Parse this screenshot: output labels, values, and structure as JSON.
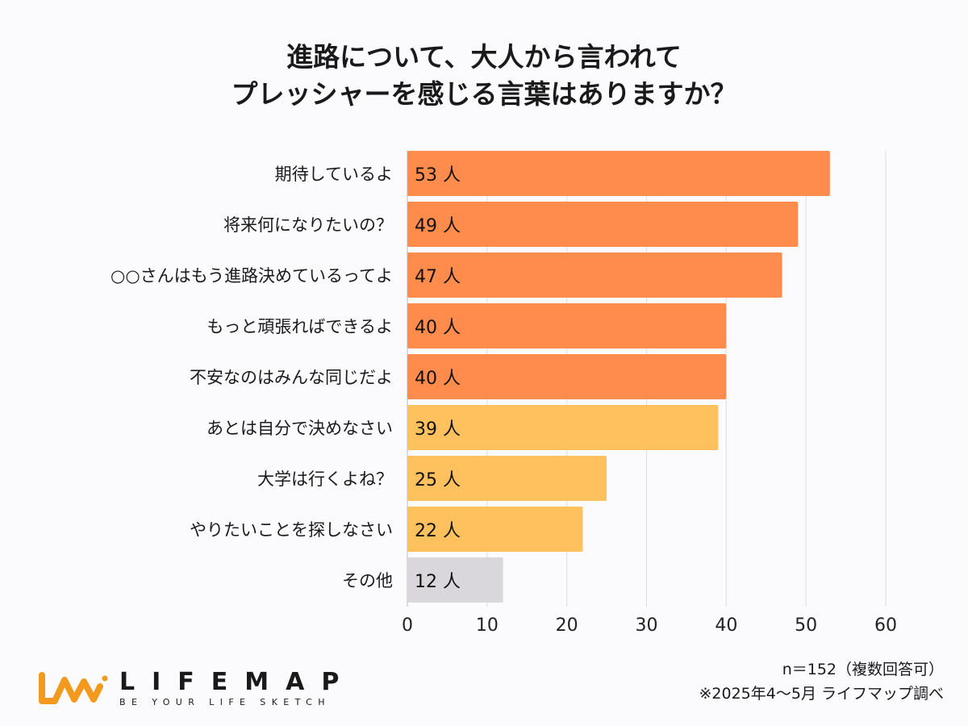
{
  "chart_data": {
    "type": "bar",
    "orientation": "horizontal",
    "title": "進路について、大人から言われて\nプレッシャーを感じる言葉はありますか？",
    "categories": [
      "期待しているよ",
      "将来何になりたいの？",
      "○○さんはもう進路決めているってよ",
      "もっと頑張ればできるよ",
      "不安なのはみんな同じだよ",
      "あとは自分で決めなさい",
      "大学は行くよね？",
      "やりたいことを探しなさい",
      "その他"
    ],
    "values": [
      53,
      49,
      47,
      40,
      40,
      39,
      25,
      22,
      12
    ],
    "value_unit": "人",
    "bar_colors": [
      "#ff8c4c",
      "#ff8c4c",
      "#ff8c4c",
      "#ff8c4c",
      "#ff8c4c",
      "#fec15d",
      "#fec15d",
      "#fec15d",
      "#d9d7dc"
    ],
    "xlim": [
      0,
      60
    ],
    "xticks": [
      0,
      10,
      20,
      30,
      40,
      50,
      60
    ],
    "grid": "vertical",
    "xlabel": "",
    "ylabel": ""
  },
  "title_lines": [
    "進路について、大人から言われて",
    "プレッシャーを感じる言葉はありますか？"
  ],
  "notes": {
    "sample": "n＝152（複数回答可）",
    "source": "※2025年4〜5月 ライフマップ調べ"
  },
  "logo": {
    "name": "LIFEMAP",
    "tagline": "BE YOUR LIFE SKETCH",
    "color": "#f39a1e"
  }
}
